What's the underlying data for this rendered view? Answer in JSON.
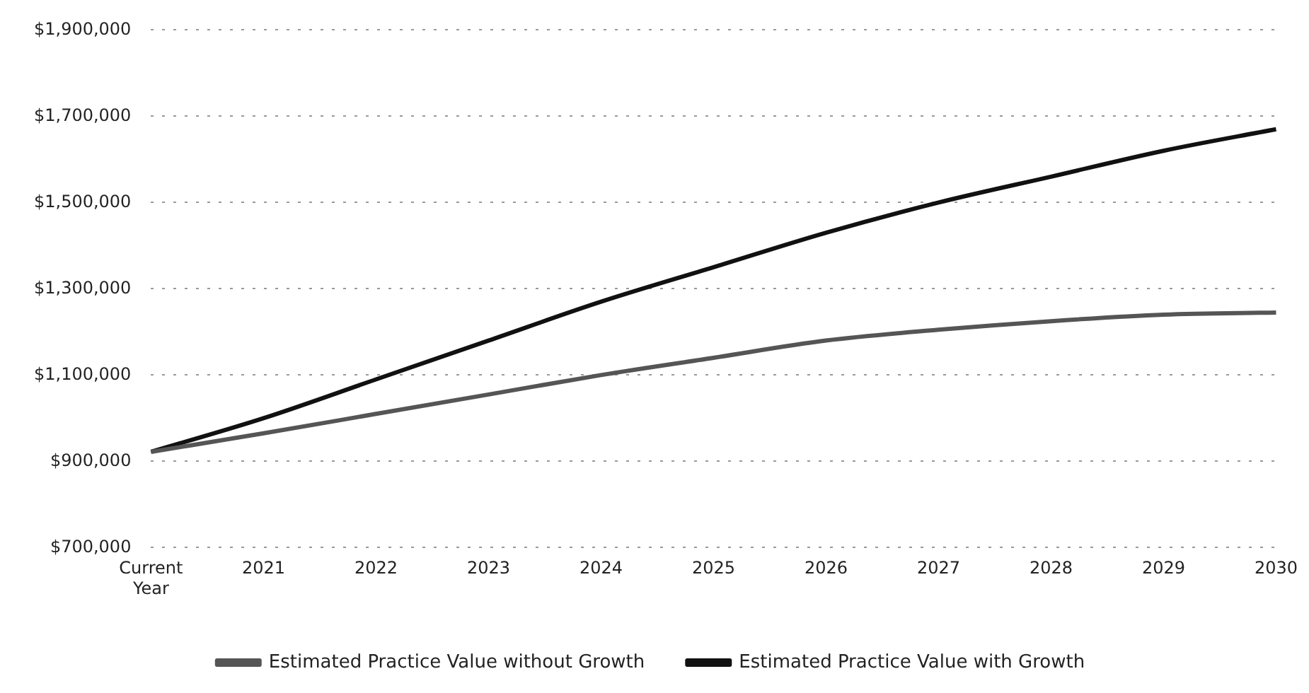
{
  "chart_data": {
    "type": "line",
    "categories": [
      "Current Year",
      "2021",
      "2022",
      "2023",
      "2024",
      "2025",
      "2026",
      "2027",
      "2028",
      "2029",
      "2030"
    ],
    "series": [
      {
        "name": "Estimated Practice Value without Growth",
        "color": "#555555",
        "values": [
          922000,
          965000,
          1010000,
          1055000,
          1100000,
          1140000,
          1180000,
          1205000,
          1225000,
          1240000,
          1245000
        ]
      },
      {
        "name": "Estimated Practice Value with Growth",
        "color": "#111111",
        "values": [
          922000,
          1000000,
          1090000,
          1180000,
          1270000,
          1350000,
          1430000,
          1500000,
          1560000,
          1620000,
          1670000
        ]
      }
    ],
    "ylim": [
      700000,
      1900000
    ],
    "yticks": [
      {
        "value": 700000,
        "label": "$700,000"
      },
      {
        "value": 900000,
        "label": "$900,000"
      },
      {
        "value": 1100000,
        "label": "$1,100,000"
      },
      {
        "value": 1300000,
        "label": "$1,300,000"
      },
      {
        "value": 1500000,
        "label": "$1,500,000"
      },
      {
        "value": 1700000,
        "label": "$1,700,000"
      },
      {
        "value": 1900000,
        "label": "$1,900,000"
      }
    ],
    "grid": "y",
    "legend": "bottom",
    "marker": "none",
    "line_style": "solid"
  }
}
